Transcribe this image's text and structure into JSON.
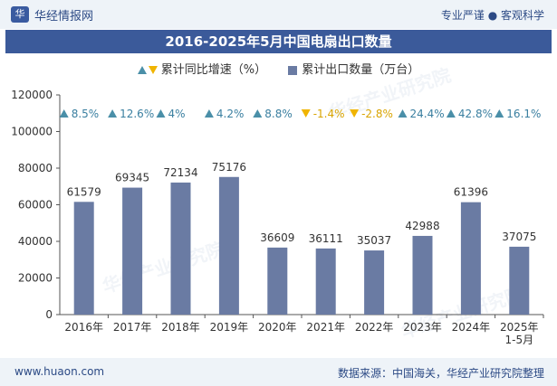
{
  "header": {
    "logo_glyph": "华",
    "brand": "华经情报网",
    "tagline": "专业严谨 ● 客观科学"
  },
  "title": "2016-2025年5月中国电扇出口数量",
  "legend": {
    "growth_label": "累计同比增速（%）",
    "quantity_label": "累计出口数量（万台）"
  },
  "watermark_text": "华经产业研究院",
  "footer": {
    "website": "www.huaon.com",
    "source": "数据来源：中国海关，华经产业研究院整理"
  },
  "colors": {
    "bar": "#6a7ba3",
    "up": "#4a8fa8",
    "down": "#f0b400",
    "title_bg": "#3b5a9a"
  },
  "chart_data": {
    "type": "bar",
    "categories": [
      "2016年",
      "2017年",
      "2018年",
      "2019年",
      "2020年",
      "2021年",
      "2022年",
      "2023年",
      "2024年",
      "2025年\n1-5月"
    ],
    "series": [
      {
        "name": "累计出口数量（万台）",
        "values": [
          61579,
          69345,
          72134,
          75176,
          36609,
          36111,
          35037,
          42988,
          61396,
          37075
        ]
      },
      {
        "name": "累计同比增速（%）",
        "values": [
          8.5,
          12.6,
          4,
          4.2,
          8.8,
          -1.4,
          -2.8,
          24.4,
          42.8,
          16.1
        ]
      }
    ],
    "growth_labels": [
      "8.5%",
      "12.6%",
      "4%",
      "4.2%",
      "8.8%",
      "-1.4%",
      "-2.8%",
      "24.4%",
      "42.8%",
      "16.1%"
    ],
    "y_ticks": [
      0,
      20000,
      40000,
      60000,
      80000,
      100000,
      120000
    ],
    "ylim": [
      0,
      120000
    ],
    "grid": false,
    "legend_position": "top-center"
  }
}
